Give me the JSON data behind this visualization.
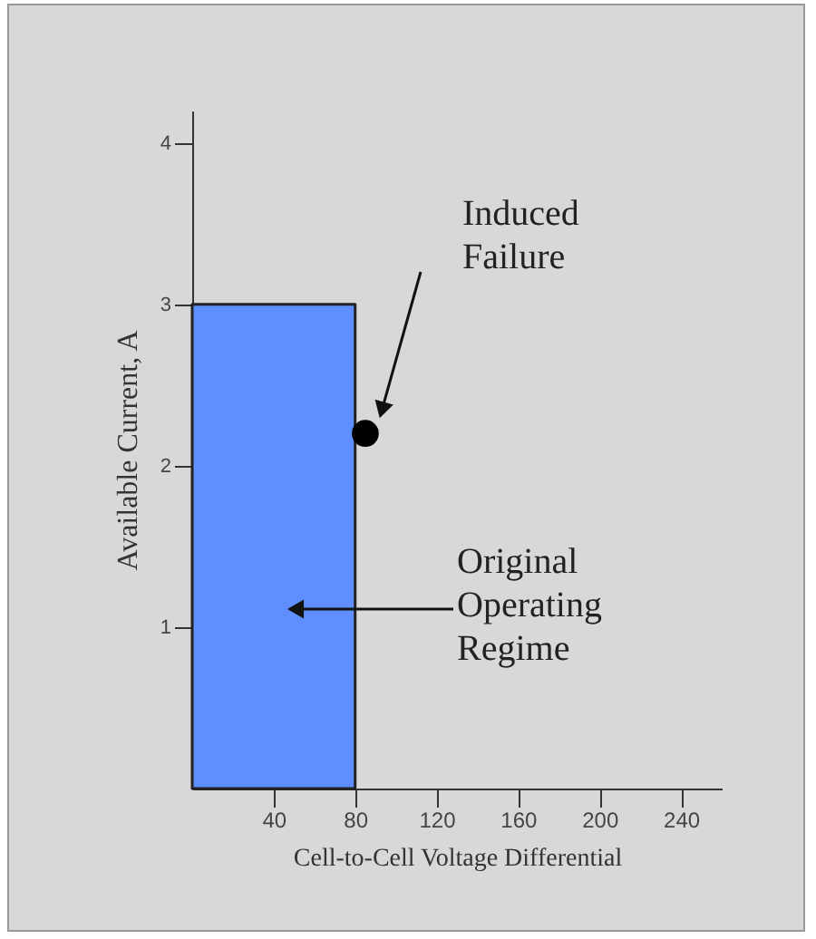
{
  "chart_data": {
    "type": "scatter",
    "xlabel": "Cell-to-Cell Voltage Differential",
    "ylabel": "Available Current, A",
    "series": [
      {
        "type": "area",
        "color": "#5f8fff",
        "x": [
          0,
          80
        ],
        "values": [
          3,
          3
        ]
      },
      {
        "color": "#000000",
        "x": [
          85
        ],
        "values": [
          2.2
        ]
      }
    ],
    "xlim": [
      0,
      260
    ],
    "ylim": [
      0,
      4.2
    ],
    "xticks": [
      40,
      80,
      120,
      160,
      200,
      240
    ],
    "yticks": [
      1,
      2,
      3,
      4
    ],
    "annotations": [
      "Induced Failure",
      "Original Operating Regime"
    ]
  }
}
